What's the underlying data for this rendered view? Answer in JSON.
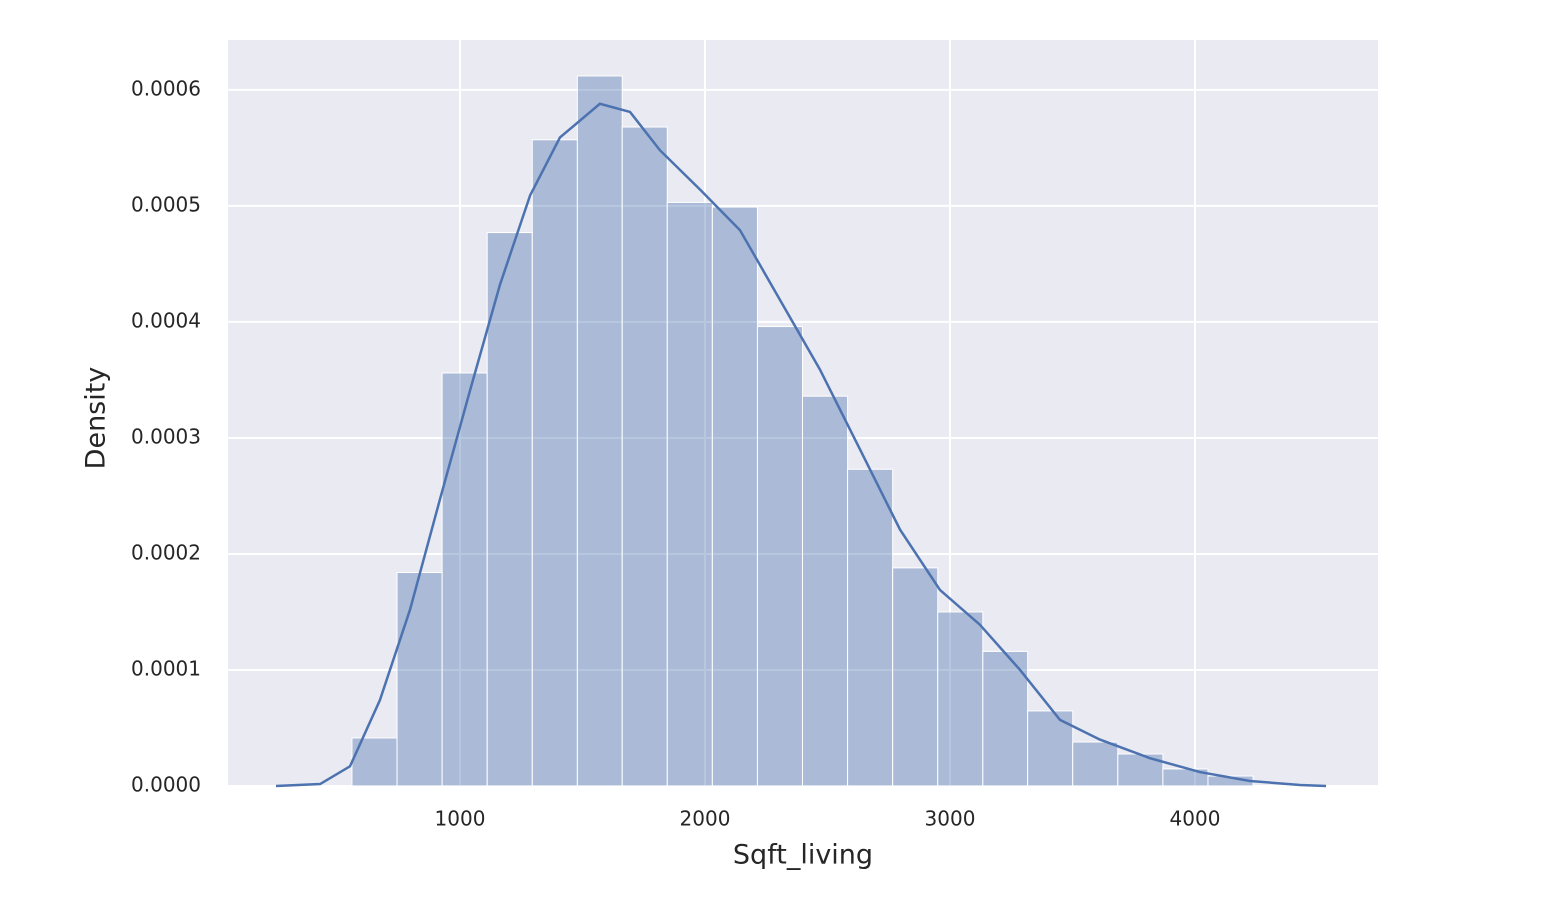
{
  "chart_data": {
    "type": "histogram",
    "xlabel": "Sqft_living",
    "ylabel": "Density",
    "bins": [
      559,
      743,
      927,
      1111,
      1295,
      1479,
      1662,
      1846,
      2030,
      2214,
      2398,
      2582,
      2766,
      2950,
      3134,
      3317,
      3501,
      3685,
      3869,
      4053,
      4237
    ],
    "values": [
      4.14e-05,
      0.000184,
      0.000356,
      0.000477,
      0.000557,
      0.000612,
      0.000568,
      0.000503,
      0.000499,
      0.000396,
      0.000336,
      0.000273,
      0.000188,
      0.00015,
      0.000116,
      6.47e-05,
      3.79e-05,
      2.76e-05,
      1.47e-05,
      8.6e-06
    ],
    "color": "#4c72b0",
    "kde": {
      "color": "#4c72b0",
      "x": [
        249,
        429,
        551,
        673,
        796,
        918,
        1041,
        1163,
        1286,
        1408,
        1571,
        1694,
        1816,
        1980,
        2143,
        2306,
        2469,
        2633,
        2796,
        2959,
        3122,
        3286,
        3449,
        3612,
        3816,
        4020,
        4224,
        4429,
        4535
      ],
      "values": [
        0,
        1.7e-06,
        1.7e-05,
        7.4e-05,
        0.000152,
        0.000247,
        0.000341,
        0.000432,
        0.000509,
        0.000559,
        0.000588,
        0.000581,
        0.000548,
        0.000514,
        0.000479,
        0.000419,
        0.000359,
        0.00029,
        0.000221,
        0.000169,
        0.000139,
        0.0001,
        5.7e-05,
        4e-05,
        2.4e-05,
        1.2e-05,
        4.3e-06,
        9e-07,
        0
      ]
    },
    "xlim": [
      53,
      4747
    ],
    "ylim": [
      0,
      0.000643
    ],
    "xticks": [
      1000,
      2000,
      3000,
      4000
    ],
    "yticks": [
      {
        "value": 0,
        "label": "0.0000"
      },
      {
        "value": 0.0001,
        "label": "0.0001"
      },
      {
        "value": 0.0002,
        "label": "0.0002"
      },
      {
        "value": 0.0003,
        "label": "0.0003"
      },
      {
        "value": 0.0004,
        "label": "0.0004"
      },
      {
        "value": 0.0005,
        "label": "0.0005"
      },
      {
        "value": 0.0006,
        "label": "0.0006"
      }
    ],
    "grid": true
  }
}
